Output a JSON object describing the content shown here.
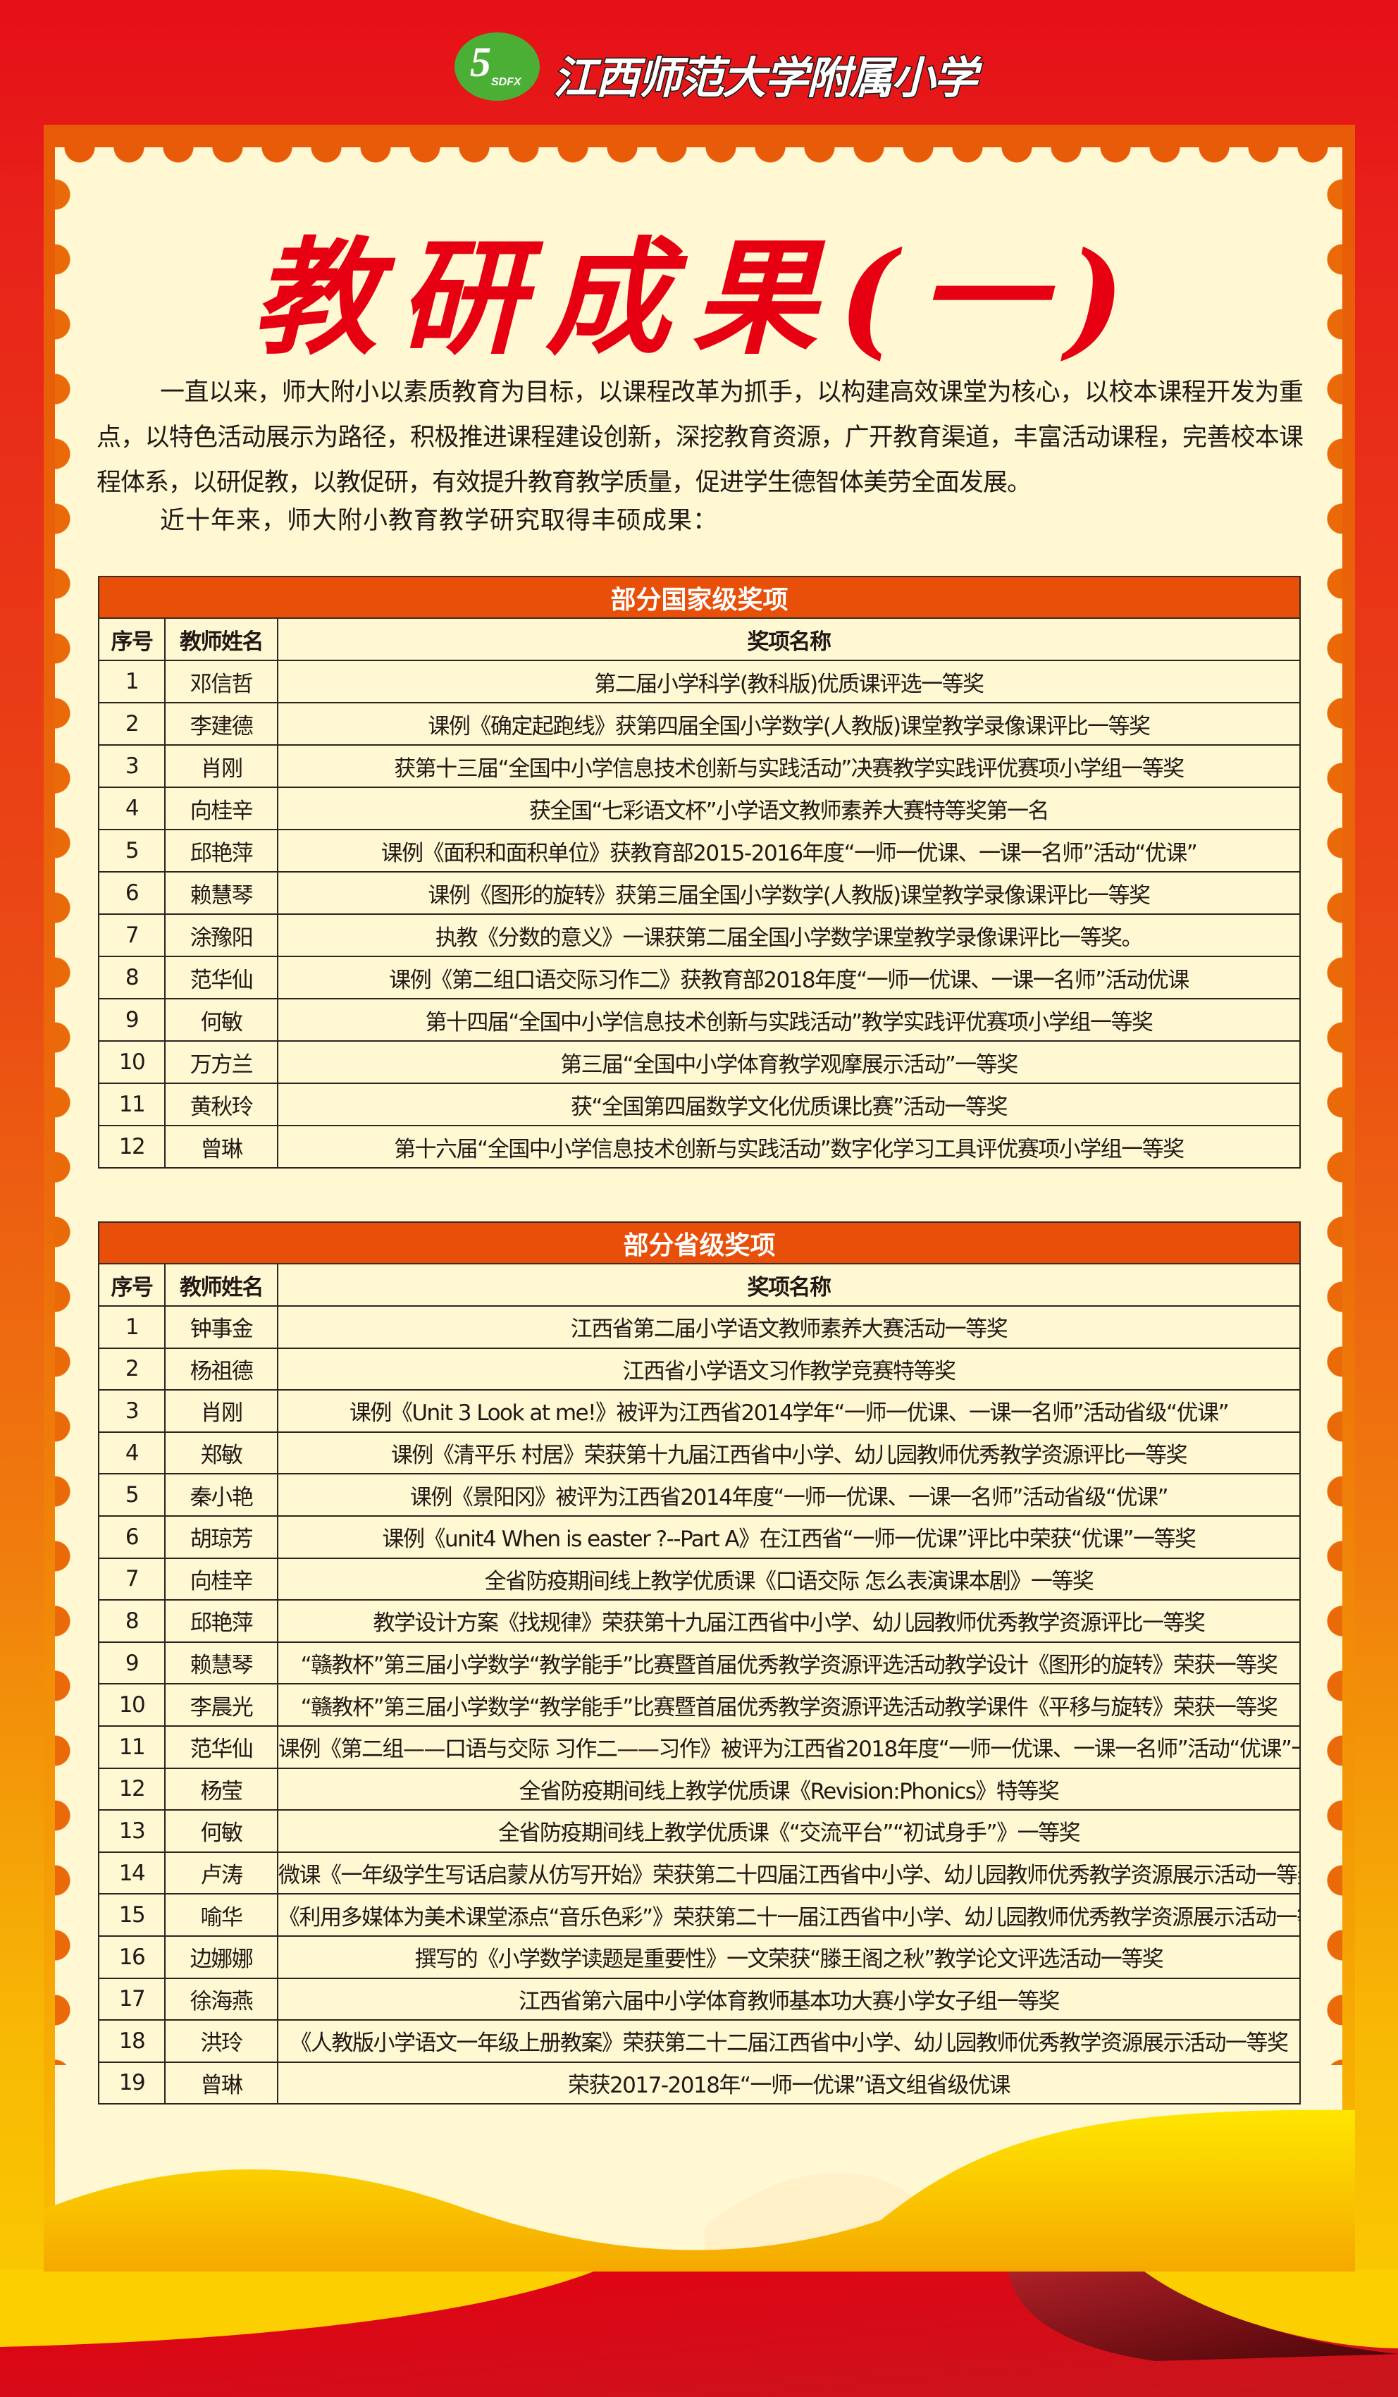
{
  "header": {
    "school_name": "江西师范大学附属小学",
    "logo_text": "SDFX"
  },
  "title": "教研成果(一)",
  "intro": {
    "paragraph": "一直以来，师大附小以素质教育为目标，以课程改革为抓手，以构建高效课堂为核心，以校本课程开发为重点，以特色活动展示为路径，积极推进课程建设创新，深挖教育资源，广开教育渠道，丰富活动课程，完善校本课程体系，以研促教，以教促研，有效提升教育教学质量，促进学生德智体美劳全面发展。",
    "lead": "近十年来，师大附小教育教学研究取得丰硕成果："
  },
  "colors": {
    "accent_red": "#e60012",
    "header_orange": "#e8500a",
    "panel_cream": "#fff8d2"
  },
  "national": {
    "title": "部分国家级奖项",
    "columns": [
      "序号",
      "教师姓名",
      "奖项名称"
    ],
    "rows": [
      [
        "1",
        "邓信哲",
        "第二届小学科学(教科版)优质课评选一等奖"
      ],
      [
        "2",
        "李建德",
        "课例《确定起跑线》获第四届全国小学数学(人教版)课堂教学录像课评比一等奖"
      ],
      [
        "3",
        "肖刚",
        "获第十三届“全国中小学信息技术创新与实践活动”决赛教学实践评优赛项小学组一等奖"
      ],
      [
        "4",
        "向桂辛",
        "获全国“七彩语文杯”小学语文教师素养大赛特等奖第一名"
      ],
      [
        "5",
        "邱艳萍",
        "课例《面积和面积单位》获教育部2015-2016年度“一师一优课、一课一名师”活动“优课”"
      ],
      [
        "6",
        "赖慧琴",
        "课例《图形的旋转》获第三届全国小学数学(人教版)课堂教学录像课评比一等奖"
      ],
      [
        "7",
        "涂豫阳",
        "执教《分数的意义》一课获第二届全国小学数学课堂教学录像课评比一等奖。"
      ],
      [
        "8",
        "范华仙",
        "课例《第二组口语交际习作二》获教育部2018年度“一师一优课、一课一名师”活动优课"
      ],
      [
        "9",
        "何敏",
        "第十四届“全国中小学信息技术创新与实践活动”教学实践评优赛项小学组一等奖"
      ],
      [
        "10",
        "万方兰",
        "第三届“全国中小学体育教学观摩展示活动”一等奖"
      ],
      [
        "11",
        "黄秋玲",
        "获“全国第四届数学文化优质课比赛”活动一等奖"
      ],
      [
        "12",
        "曾琳",
        "第十六届“全国中小学信息技术创新与实践活动”数字化学习工具评优赛项小学组一等奖"
      ]
    ]
  },
  "provincial": {
    "title": "部分省级奖项",
    "columns": [
      "序号",
      "教师姓名",
      "奖项名称"
    ],
    "rows": [
      [
        "1",
        "钟事金",
        "江西省第二届小学语文教师素养大赛活动一等奖"
      ],
      [
        "2",
        "杨祖德",
        "江西省小学语文习作教学竞赛特等奖"
      ],
      [
        "3",
        "肖刚",
        "课例《Unit 3 Look at me!》被评为江西省2014学年“一师一优课、一课一名师”活动省级“优课”"
      ],
      [
        "4",
        "郑敏",
        "课例《清平乐 村居》荣获第十九届江西省中小学、幼儿园教师优秀教学资源评比一等奖"
      ],
      [
        "5",
        "秦小艳",
        "课例《景阳冈》被评为江西省2014年度“一师一优课、一课一名师”活动省级“优课”"
      ],
      [
        "6",
        "胡琼芳",
        "课例《unit4 When is easter ?--Part A》在江西省“一师一优课”评比中荣获“优课”一等奖"
      ],
      [
        "7",
        "向桂辛",
        "全省防疫期间线上教学优质课《口语交际 怎么表演课本剧》一等奖"
      ],
      [
        "8",
        "邱艳萍",
        "教学设计方案《找规律》荣获第十九届江西省中小学、幼儿园教师优秀教学资源评比一等奖"
      ],
      [
        "9",
        "赖慧琴",
        "“赣教杯”第三届小学数学“教学能手”比赛暨首届优秀教学资源评选活动教学设计《图形的旋转》荣获一等奖"
      ],
      [
        "10",
        "李晨光",
        "“赣教杯”第三届小学数学“教学能手”比赛暨首届优秀教学资源评选活动教学课件《平移与旋转》荣获一等奖"
      ],
      [
        "11",
        "范华仙",
        "课例《第二组——口语与交际 习作二——习作》被评为江西省2018年度“一师一优课、一课一名师”活动“优课”一等奖"
      ],
      [
        "12",
        "杨莹",
        "全省防疫期间线上教学优质课《Revision:Phonics》特等奖"
      ],
      [
        "13",
        "何敏",
        "全省防疫期间线上教学优质课《“交流平台”“初试身手”》一等奖"
      ],
      [
        "14",
        "卢涛",
        "微课《一年级学生写话启蒙从仿写开始》荣获第二十四届江西省中小学、幼儿园教师优秀教学资源展示活动一等奖"
      ],
      [
        "15",
        "喻华",
        "《利用多媒体为美术课堂添点“音乐色彩”》荣获第二十一届江西省中小学、幼儿园教师优秀教学资源展示活动一等奖"
      ],
      [
        "16",
        "边娜娜",
        "撰写的《小学数学读题是重要性》一文荣获“滕王阁之秋”教学论文评选活动一等奖"
      ],
      [
        "17",
        "徐海燕",
        "江西省第六届中小学体育教师基本功大赛小学女子组一等奖"
      ],
      [
        "18",
        "洪玲",
        "《人教版小学语文一年级上册教案》荣获第二十二届江西省中小学、幼儿园教师优秀教学资源展示活动一等奖"
      ],
      [
        "19",
        "曾琳",
        "荣获2017-2018年“一师一优课”语文组省级优课"
      ]
    ]
  }
}
